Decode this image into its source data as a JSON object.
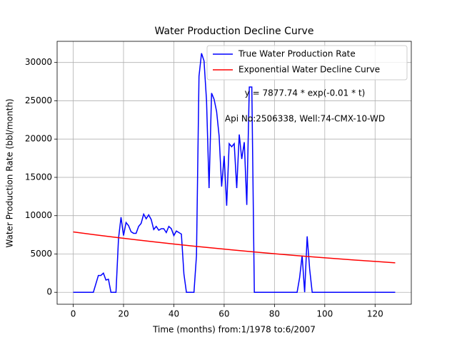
{
  "chart_data": {
    "type": "line",
    "title": "Water Production Decline Curve",
    "xlabel": "Time (months) from:1/1978 to:6/2007",
    "ylabel": "Water Production Rate (bbl/month)",
    "annotations": [
      "y = 7877.74 * exp(-0.01 * t)",
      "Api No:2506338, Well:74-CMX-10-WD"
    ],
    "series": [
      {
        "name": "True Water Production Rate",
        "color": "#0000ff",
        "x": [
          0,
          8,
          10,
          11,
          12,
          13,
          14,
          15,
          17,
          18,
          19,
          20,
          21,
          22,
          23,
          24,
          25,
          26,
          27,
          28,
          29,
          30,
          31,
          32,
          33,
          34,
          35,
          36,
          37,
          38,
          39,
          40,
          41,
          42,
          43,
          44,
          45,
          48,
          49,
          50,
          51,
          52,
          53,
          54,
          55,
          56,
          57,
          58,
          59,
          60,
          61,
          62,
          63,
          64,
          65,
          66,
          67,
          68,
          69,
          70,
          71,
          72,
          89,
          90,
          91,
          92,
          93,
          94,
          95,
          128
        ],
        "values": [
          0,
          0,
          2200,
          2200,
          2500,
          1600,
          1700,
          0,
          0,
          7000,
          9800,
          7400,
          9100,
          8700,
          7900,
          7700,
          7700,
          8600,
          9000,
          10200,
          9600,
          10100,
          9500,
          8200,
          8600,
          8100,
          8300,
          8300,
          7800,
          8600,
          8300,
          7400,
          8000,
          7800,
          7600,
          2400,
          0,
          0,
          4800,
          28200,
          31200,
          30200,
          25000,
          13600,
          26000,
          25200,
          23600,
          20400,
          13800,
          17800,
          11300,
          19400,
          19000,
          19400,
          13600,
          20600,
          17400,
          19600,
          11400,
          26800,
          26800,
          0,
          0,
          1900,
          4800,
          0,
          7300,
          3000,
          0,
          0
        ]
      },
      {
        "name": "Exponential Water Decline Curve",
        "color": "#ff0000",
        "x": [
          0,
          8,
          16,
          24,
          32,
          40,
          48,
          56,
          64,
          72,
          80,
          88,
          96,
          104,
          112,
          120,
          128
        ],
        "values": [
          7878,
          7533,
          7203,
          6888,
          6587,
          6299,
          6023,
          5760,
          5508,
          5267,
          5036,
          4816,
          4605,
          4404,
          4211,
          4027,
          3851
        ]
      }
    ],
    "xlim": [
      -6.4,
      134.4
    ],
    "xticks": [
      0,
      20,
      40,
      60,
      80,
      100,
      120
    ],
    "ylim": [
      -1560,
      32760
    ],
    "yticks": [
      0,
      5000,
      10000,
      15000,
      20000,
      25000,
      30000
    ],
    "grid": true,
    "legend": "upper right"
  }
}
